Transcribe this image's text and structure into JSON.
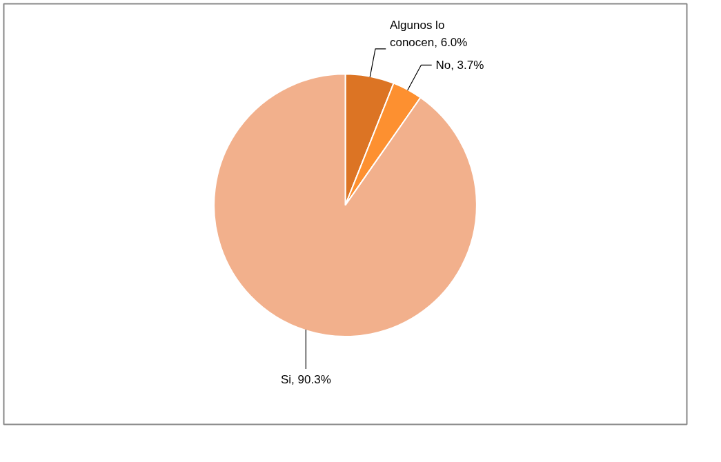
{
  "chart_data": {
    "type": "pie",
    "categories": [
      "Algunos lo conocen",
      "No",
      "Si"
    ],
    "values": [
      6.0,
      3.7,
      90.3
    ],
    "value_labels": [
      "6.0%",
      "3.7%",
      "90.3%"
    ],
    "colors": [
      "#dc7424",
      "#fd9030",
      "#f2b08c"
    ]
  }
}
